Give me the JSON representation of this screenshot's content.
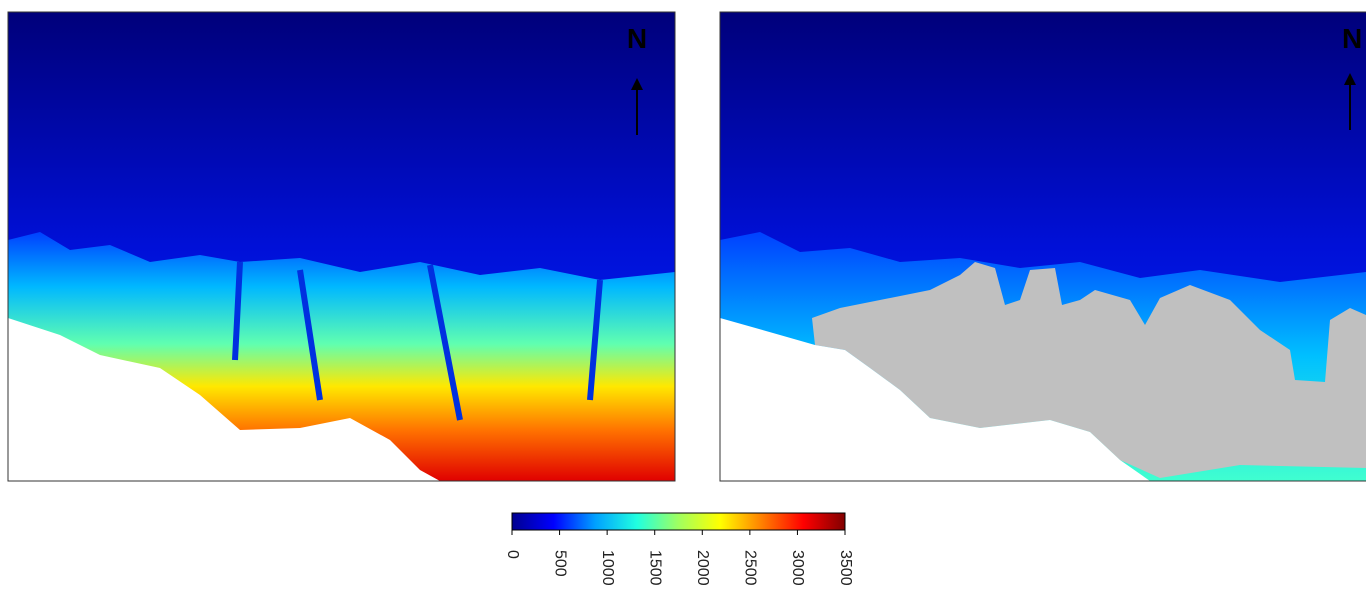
{
  "panels": [
    {
      "north_label": "N"
    },
    {
      "north_label": "N"
    }
  ],
  "colorbar": {
    "lim": [
      0,
      3500
    ],
    "ticks": [
      0,
      500,
      1000,
      1500,
      2000,
      2500,
      3000,
      3500
    ],
    "colormap": [
      "#00008f",
      "#0000ff",
      "#00a0ff",
      "#20ffe0",
      "#a0ff60",
      "#ffff00",
      "#ff8000",
      "#ff0000",
      "#800000"
    ]
  }
}
